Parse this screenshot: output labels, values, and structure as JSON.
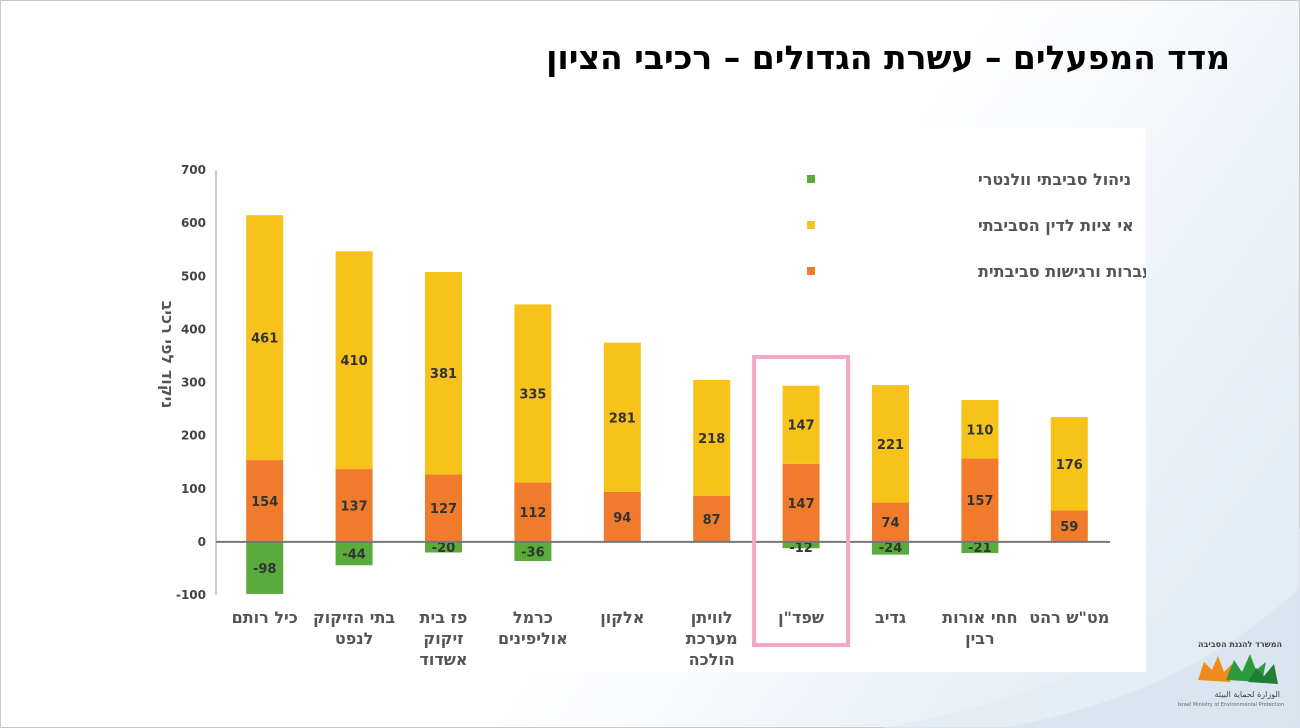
{
  "slide": {
    "title": "מדד המפעלים – עשרת הגדולים – רכיבי הציון"
  },
  "logo": {
    "hebrew": "המשרד להגנת הסביבה",
    "arabic": "الوزارة لحماية البيئة",
    "english": "Israel Ministry of Environmental Protection"
  },
  "chart_data": {
    "type": "bar",
    "stacked": true,
    "categories": [
      [
        "כיל רותם"
      ],
      [
        "בתי הזיקוק",
        "לנפט"
      ],
      [
        "פז בית",
        "זיקוק",
        "אשדוד"
      ],
      [
        "כרמל",
        "אוליפינים"
      ],
      [
        "אלקון"
      ],
      [
        "לוויתן",
        "מערכת",
        "הולכה"
      ],
      [
        "שפד\"ן"
      ],
      [
        "גדיב"
      ],
      [
        "חחי אורות",
        "רבין"
      ],
      [
        "מט\"ש רהט"
      ]
    ],
    "series": [
      {
        "name": "פליטות, העברות ורגישות סביבתית",
        "color": "#f07b2c",
        "values": [
          154,
          137,
          127,
          112,
          94,
          87,
          147,
          74,
          157,
          59
        ]
      },
      {
        "name": "אי ציות לדין הסביבתי",
        "color": "#f7c31a",
        "values": [
          461,
          410,
          381,
          335,
          281,
          218,
          147,
          221,
          110,
          176
        ]
      },
      {
        "name": "ניהול סביבתי וולנטרי",
        "color": "#5aaa3c",
        "values": [
          -98,
          -44,
          -20,
          -36,
          0,
          0,
          -12,
          -24,
          -21,
          0
        ]
      }
    ],
    "ylabel": "ניקוד לפי רכיב",
    "xlabel": "",
    "ylim": [
      -100,
      700
    ],
    "yticks": [
      -100,
      0,
      100,
      200,
      300,
      400,
      500,
      600,
      700
    ],
    "highlight_index": 6,
    "highlight_color": "#f4a6c4",
    "legend_position": "top-right",
    "grid": false
  }
}
